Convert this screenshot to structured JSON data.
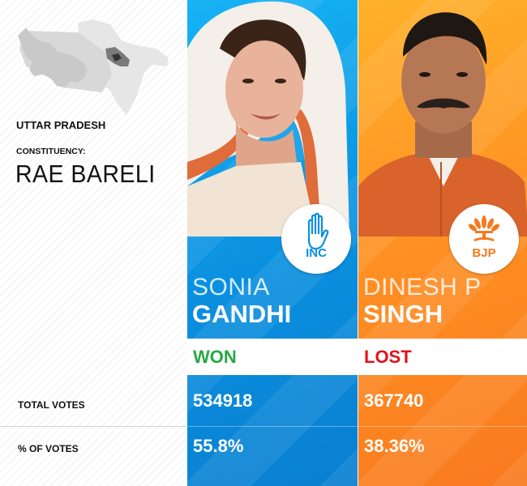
{
  "region": {
    "state": "UTTAR PRADESH",
    "constituency_label": "CONSTITUENCY:",
    "constituency": "RAE BARELI"
  },
  "rows": {
    "total_votes_label": "TOTAL VOTES",
    "pct_votes_label": "% OF VOTES"
  },
  "candidates": [
    {
      "party": "INC",
      "first_name": "SONIA",
      "last_name": "GANDHI",
      "result": "WON",
      "total_votes": "534918",
      "pct_votes": "55.8%",
      "color": "#0a8fdf",
      "result_color": "#27a844",
      "icon": "hand-symbol-icon"
    },
    {
      "party": "BJP",
      "first_name": "DINESH P",
      "last_name": "SINGH",
      "result": "LOST",
      "total_votes": "367740",
      "pct_votes": "38.36%",
      "color": "#ff8f23",
      "result_color": "#e0131a",
      "icon": "lotus-symbol-icon"
    }
  ]
}
